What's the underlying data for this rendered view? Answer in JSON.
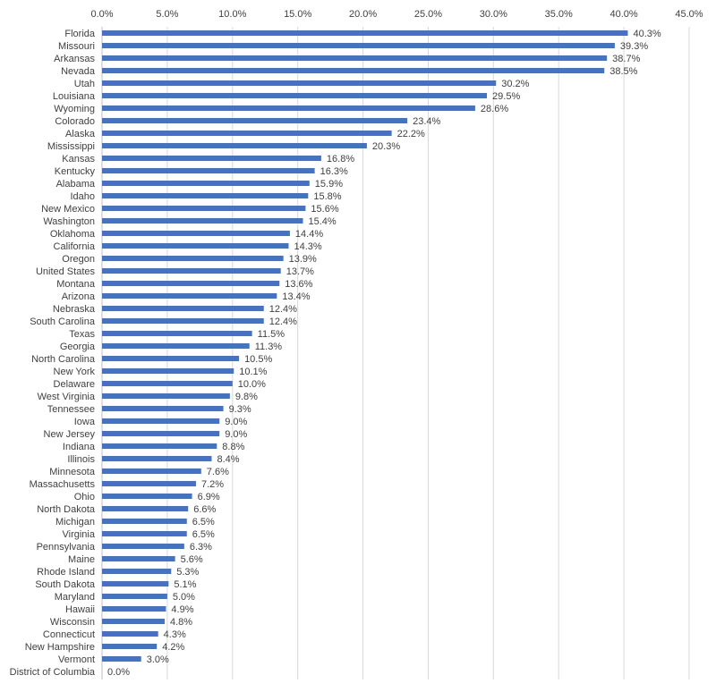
{
  "chart_data": {
    "type": "bar",
    "orientation": "horizontal",
    "title": "",
    "xlabel": "",
    "ylabel": "",
    "xlim": [
      0,
      45
    ],
    "ticks": [
      "0.0%",
      "5.0%",
      "10.0%",
      "15.0%",
      "20.0%",
      "25.0%",
      "30.0%",
      "35.0%",
      "40.0%",
      "45.0%"
    ],
    "tick_axis_position": "top",
    "grid": true,
    "legend": "none",
    "bar_color": "#4472C4",
    "categories": [
      "Florida",
      "Missouri",
      "Arkansas",
      "Nevada",
      "Utah",
      "Louisiana",
      "Wyoming",
      "Colorado",
      "Alaska",
      "Mississippi",
      "Kansas",
      "Kentucky",
      "Alabama",
      "Idaho",
      "New Mexico",
      "Washington",
      "Oklahoma",
      "California",
      "Oregon",
      "United States",
      "Montana",
      "Arizona",
      "Nebraska",
      "South Carolina",
      "Texas",
      "Georgia",
      "North Carolina",
      "New York",
      "Delaware",
      "West Virginia",
      "Tennessee",
      "Iowa",
      "New Jersey",
      "Indiana",
      "Illinois",
      "Minnesota",
      "Massachusetts",
      "Ohio",
      "North Dakota",
      "Michigan",
      "Virginia",
      "Pennsylvania",
      "Maine",
      "Rhode Island",
      "South Dakota",
      "Maryland",
      "Hawaii",
      "Wisconsin",
      "Connecticut",
      "New Hampshire",
      "Vermont",
      "District of Columbia"
    ],
    "values": [
      40.3,
      39.3,
      38.7,
      38.5,
      30.2,
      29.5,
      28.6,
      23.4,
      22.2,
      20.3,
      16.8,
      16.3,
      15.9,
      15.8,
      15.6,
      15.4,
      14.4,
      14.3,
      13.9,
      13.7,
      13.6,
      13.4,
      12.4,
      12.4,
      11.5,
      11.3,
      10.5,
      10.1,
      10.0,
      9.8,
      9.3,
      9.0,
      9.0,
      8.8,
      8.4,
      7.6,
      7.2,
      6.9,
      6.6,
      6.5,
      6.5,
      6.3,
      5.6,
      5.3,
      5.1,
      5.0,
      4.9,
      4.8,
      4.3,
      4.2,
      3.0,
      0.0
    ],
    "data_labels": [
      "40.3%",
      "39.3%",
      "38.7%",
      "38.5%",
      "30.2%",
      "29.5%",
      "28.6%",
      "23.4%",
      "22.2%",
      "20.3%",
      "16.8%",
      "16.3%",
      "15.9%",
      "15.8%",
      "15.6%",
      "15.4%",
      "14.4%",
      "14.3%",
      "13.9%",
      "13.7%",
      "13.6%",
      "13.4%",
      "12.4%",
      "12.4%",
      "11.5%",
      "11.3%",
      "10.5%",
      "10.1%",
      "10.0%",
      "9.8%",
      "9.3%",
      "9.0%",
      "9.0%",
      "8.8%",
      "8.4%",
      "7.6%",
      "7.2%",
      "6.9%",
      "6.6%",
      "6.5%",
      "6.5%",
      "6.3%",
      "5.6%",
      "5.3%",
      "5.1%",
      "5.0%",
      "4.9%",
      "4.8%",
      "4.3%",
      "4.2%",
      "3.0%",
      "0.0%"
    ]
  }
}
